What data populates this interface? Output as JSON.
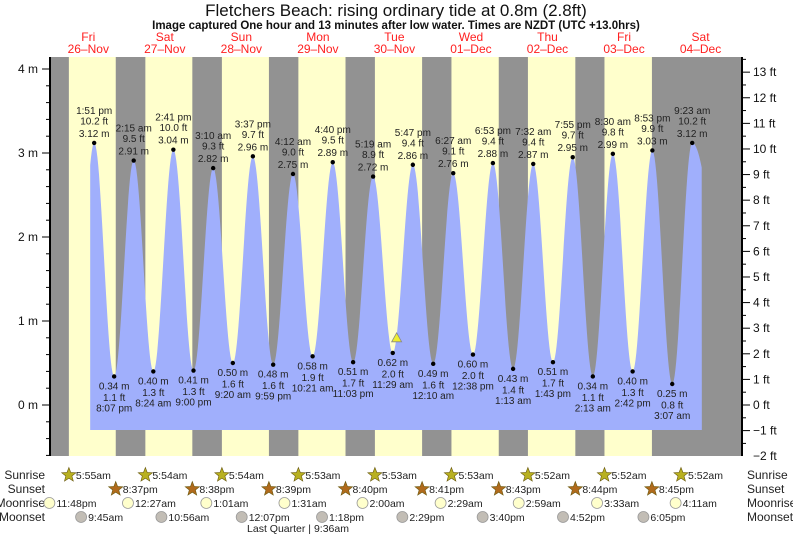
{
  "chart_data": {
    "type": "area",
    "title": "Fletchers Beach: rising  ordinary tide at 0.8m (2.8ft)",
    "subtitle": "Image captured One hour and 13 minutes after low water. Times are NZDT (UTC +13.0hrs)",
    "days": [
      {
        "dow": "Fri",
        "date": "26–Nov"
      },
      {
        "dow": "Sat",
        "date": "27–Nov"
      },
      {
        "dow": "Sun",
        "date": "28–Nov"
      },
      {
        "dow": "Mon",
        "date": "29–Nov"
      },
      {
        "dow": "Tue",
        "date": "30–Nov"
      },
      {
        "dow": "Wed",
        "date": "01–Dec"
      },
      {
        "dow": "Thu",
        "date": "02–Dec"
      },
      {
        "dow": "Fri",
        "date": "03–Dec"
      },
      {
        "dow": "Sat",
        "date": "04–Dec"
      }
    ],
    "left_axis": {
      "unit": "m",
      "ticks": [
        "4 m",
        "3 m",
        "2 m",
        "1 m",
        "0 m"
      ],
      "ylim_m": [
        -0.6,
        4.14
      ]
    },
    "right_axis": {
      "unit": "ft",
      "ticks": [
        "13 ft",
        "12 ft",
        "11 ft",
        "10 ft",
        "9 ft",
        "8 ft",
        "7 ft",
        "6 ft",
        "5 ft",
        "4 ft",
        "3 ft",
        "2 ft",
        "1 ft",
        "0 ft",
        "−1 ft",
        "−2 ft"
      ]
    },
    "tides": [
      {
        "day": "26-Nov",
        "type": "high",
        "time": "1:51 pm",
        "ft": "10.2 ft",
        "m": "3.12 m"
      },
      {
        "day": "26-Nov",
        "type": "low",
        "time": "8:07 pm",
        "ft": "1.1 ft",
        "m": "0.34 m"
      },
      {
        "day": "27-Nov",
        "type": "high",
        "time": "2:15 am",
        "ft": "9.5 ft",
        "m": "2.91 m"
      },
      {
        "day": "27-Nov",
        "type": "low",
        "time": "8:24 am",
        "ft": "1.3 ft",
        "m": "0.40 m"
      },
      {
        "day": "27-Nov",
        "type": "high",
        "time": "2:41 pm",
        "ft": "10.0 ft",
        "m": "3.04 m"
      },
      {
        "day": "27-Nov",
        "type": "low",
        "time": "9:00 pm",
        "ft": "1.3 ft",
        "m": "0.41 m"
      },
      {
        "day": "28-Nov",
        "type": "high",
        "time": "3:10 am",
        "ft": "9.3 ft",
        "m": "2.82 m"
      },
      {
        "day": "28-Nov",
        "type": "low",
        "time": "9:20 am",
        "ft": "1.6 ft",
        "m": "0.50 m"
      },
      {
        "day": "28-Nov",
        "type": "high",
        "time": "3:37 pm",
        "ft": "9.7 ft",
        "m": "2.96 m"
      },
      {
        "day": "28-Nov",
        "type": "low",
        "time": "9:59 pm",
        "ft": "1.6 ft",
        "m": "0.48 m"
      },
      {
        "day": "29-Nov",
        "type": "high",
        "time": "4:12 am",
        "ft": "9.0 ft",
        "m": "2.75 m"
      },
      {
        "day": "29-Nov",
        "type": "low",
        "time": "10:21 am",
        "ft": "1.9 ft",
        "m": "0.58 m"
      },
      {
        "day": "29-Nov",
        "type": "high",
        "time": "4:40 pm",
        "ft": "9.5 ft",
        "m": "2.89 m"
      },
      {
        "day": "29-Nov",
        "type": "low",
        "time": "11:03 pm",
        "ft": "1.7 ft",
        "m": "0.51 m"
      },
      {
        "day": "30-Nov",
        "type": "high",
        "time": "5:19 am",
        "ft": "8.9 ft",
        "m": "2.72 m"
      },
      {
        "day": "30-Nov",
        "type": "low",
        "time": "11:29 am",
        "ft": "2.0 ft",
        "m": "0.62 m"
      },
      {
        "day": "30-Nov",
        "type": "high",
        "time": "5:47 pm",
        "ft": "9.4 ft",
        "m": "2.86 m"
      },
      {
        "day": "01-Dec",
        "type": "low",
        "time": "12:10 am",
        "ft": "1.6 ft",
        "m": "0.49 m"
      },
      {
        "day": "01-Dec",
        "type": "high",
        "time": "6:27 am",
        "ft": "9.1 ft",
        "m": "2.76 m"
      },
      {
        "day": "01-Dec",
        "type": "low",
        "time": "12:38 pm",
        "ft": "2.0 ft",
        "m": "0.60 m"
      },
      {
        "day": "01-Dec",
        "type": "high",
        "time": "6:53 pm",
        "ft": "9.4 ft",
        "m": "2.88 m"
      },
      {
        "day": "02-Dec",
        "type": "low",
        "time": "1:13 am",
        "ft": "1.4 ft",
        "m": "0.43 m"
      },
      {
        "day": "02-Dec",
        "type": "high",
        "time": "7:32 am",
        "ft": "9.4 ft",
        "m": "2.87 m"
      },
      {
        "day": "02-Dec",
        "type": "low",
        "time": "1:43 pm",
        "ft": "1.7 ft",
        "m": "0.51 m"
      },
      {
        "day": "02-Dec",
        "type": "high",
        "time": "7:55 pm",
        "ft": "9.7 ft",
        "m": "2.95 m"
      },
      {
        "day": "03-Dec",
        "type": "low",
        "time": "2:13 am",
        "ft": "1.1 ft",
        "m": "0.34 m"
      },
      {
        "day": "03-Dec",
        "type": "high",
        "time": "8:30 am",
        "ft": "9.8 ft",
        "m": "2.99 m"
      },
      {
        "day": "03-Dec",
        "type": "low",
        "time": "2:42 pm",
        "ft": "1.3 ft",
        "m": "0.40 m"
      },
      {
        "day": "03-Dec",
        "type": "high",
        "time": "8:53 pm",
        "ft": "9.9 ft",
        "m": "3.03 m"
      },
      {
        "day": "04-Dec",
        "type": "low",
        "time": "3:07 am",
        "ft": "0.8 ft",
        "m": "0.25 m"
      },
      {
        "day": "04-Dec",
        "type": "high",
        "time": "9:23 am",
        "ft": "10.2 ft",
        "m": "3.12 m"
      }
    ],
    "current": {
      "day": "30-Nov",
      "time": "12:42 pm",
      "height_m": 0.8,
      "marker": "triangle-icon"
    },
    "rows": {
      "sunrise": "Sunrise",
      "sunset": "Sunset",
      "moonrise": "Moonrise",
      "moonset": "Moonset"
    },
    "sunrise": [
      {
        "day": "26-Nov",
        "time": "5:55am"
      },
      {
        "day": "27-Nov",
        "time": "5:54am"
      },
      {
        "day": "28-Nov",
        "time": "5:54am"
      },
      {
        "day": "29-Nov",
        "time": "5:53am"
      },
      {
        "day": "30-Nov",
        "time": "5:53am"
      },
      {
        "day": "01-Dec",
        "time": "5:53am"
      },
      {
        "day": "02-Dec",
        "time": "5:52am"
      },
      {
        "day": "03-Dec",
        "time": "5:52am"
      },
      {
        "day": "04-Dec",
        "time": "5:52am"
      }
    ],
    "sunset": [
      {
        "day": "26-Nov",
        "time": "8:37pm"
      },
      {
        "day": "27-Nov",
        "time": "8:38pm"
      },
      {
        "day": "28-Nov",
        "time": "8:39pm"
      },
      {
        "day": "29-Nov",
        "time": "8:40pm"
      },
      {
        "day": "30-Nov",
        "time": "8:41pm"
      },
      {
        "day": "01-Dec",
        "time": "8:43pm"
      },
      {
        "day": "02-Dec",
        "time": "8:44pm"
      },
      {
        "day": "03-Dec",
        "time": "8:45pm"
      }
    ],
    "moonrise": [
      {
        "day": "25-Nov",
        "time": "11:48pm"
      },
      {
        "day": "27-Nov",
        "time": "12:27am"
      },
      {
        "day": "28-Nov",
        "time": "1:01am"
      },
      {
        "day": "29-Nov",
        "time": "1:31am"
      },
      {
        "day": "30-Nov",
        "time": "2:00am"
      },
      {
        "day": "01-Dec",
        "time": "2:29am"
      },
      {
        "day": "02-Dec",
        "time": "2:59am"
      },
      {
        "day": "03-Dec",
        "time": "3:33am"
      },
      {
        "day": "04-Dec",
        "time": "4:11am"
      }
    ],
    "moonset": [
      {
        "day": "26-Nov",
        "time": "9:45am"
      },
      {
        "day": "27-Nov",
        "time": "10:56am"
      },
      {
        "day": "28-Nov",
        "time": "12:07pm"
      },
      {
        "day": "29-Nov",
        "time": "1:18pm"
      },
      {
        "day": "30-Nov",
        "time": "2:29pm"
      },
      {
        "day": "01-Dec",
        "time": "3:40pm"
      },
      {
        "day": "02-Dec",
        "time": "4:52pm"
      },
      {
        "day": "03-Dec",
        "time": "6:05pm"
      }
    ],
    "moon_phase": "Last Quarter | 9:36am",
    "colors": {
      "night": "#929292",
      "day": "#ffffcc",
      "water": "#a0affc",
      "day_label": "#ff2020",
      "sunrise": "#b8b020",
      "sunset": "#b06a1c",
      "moonrise": "#ffffcc",
      "moonset": "#c2bdb5",
      "marker": "#eeee30"
    }
  }
}
